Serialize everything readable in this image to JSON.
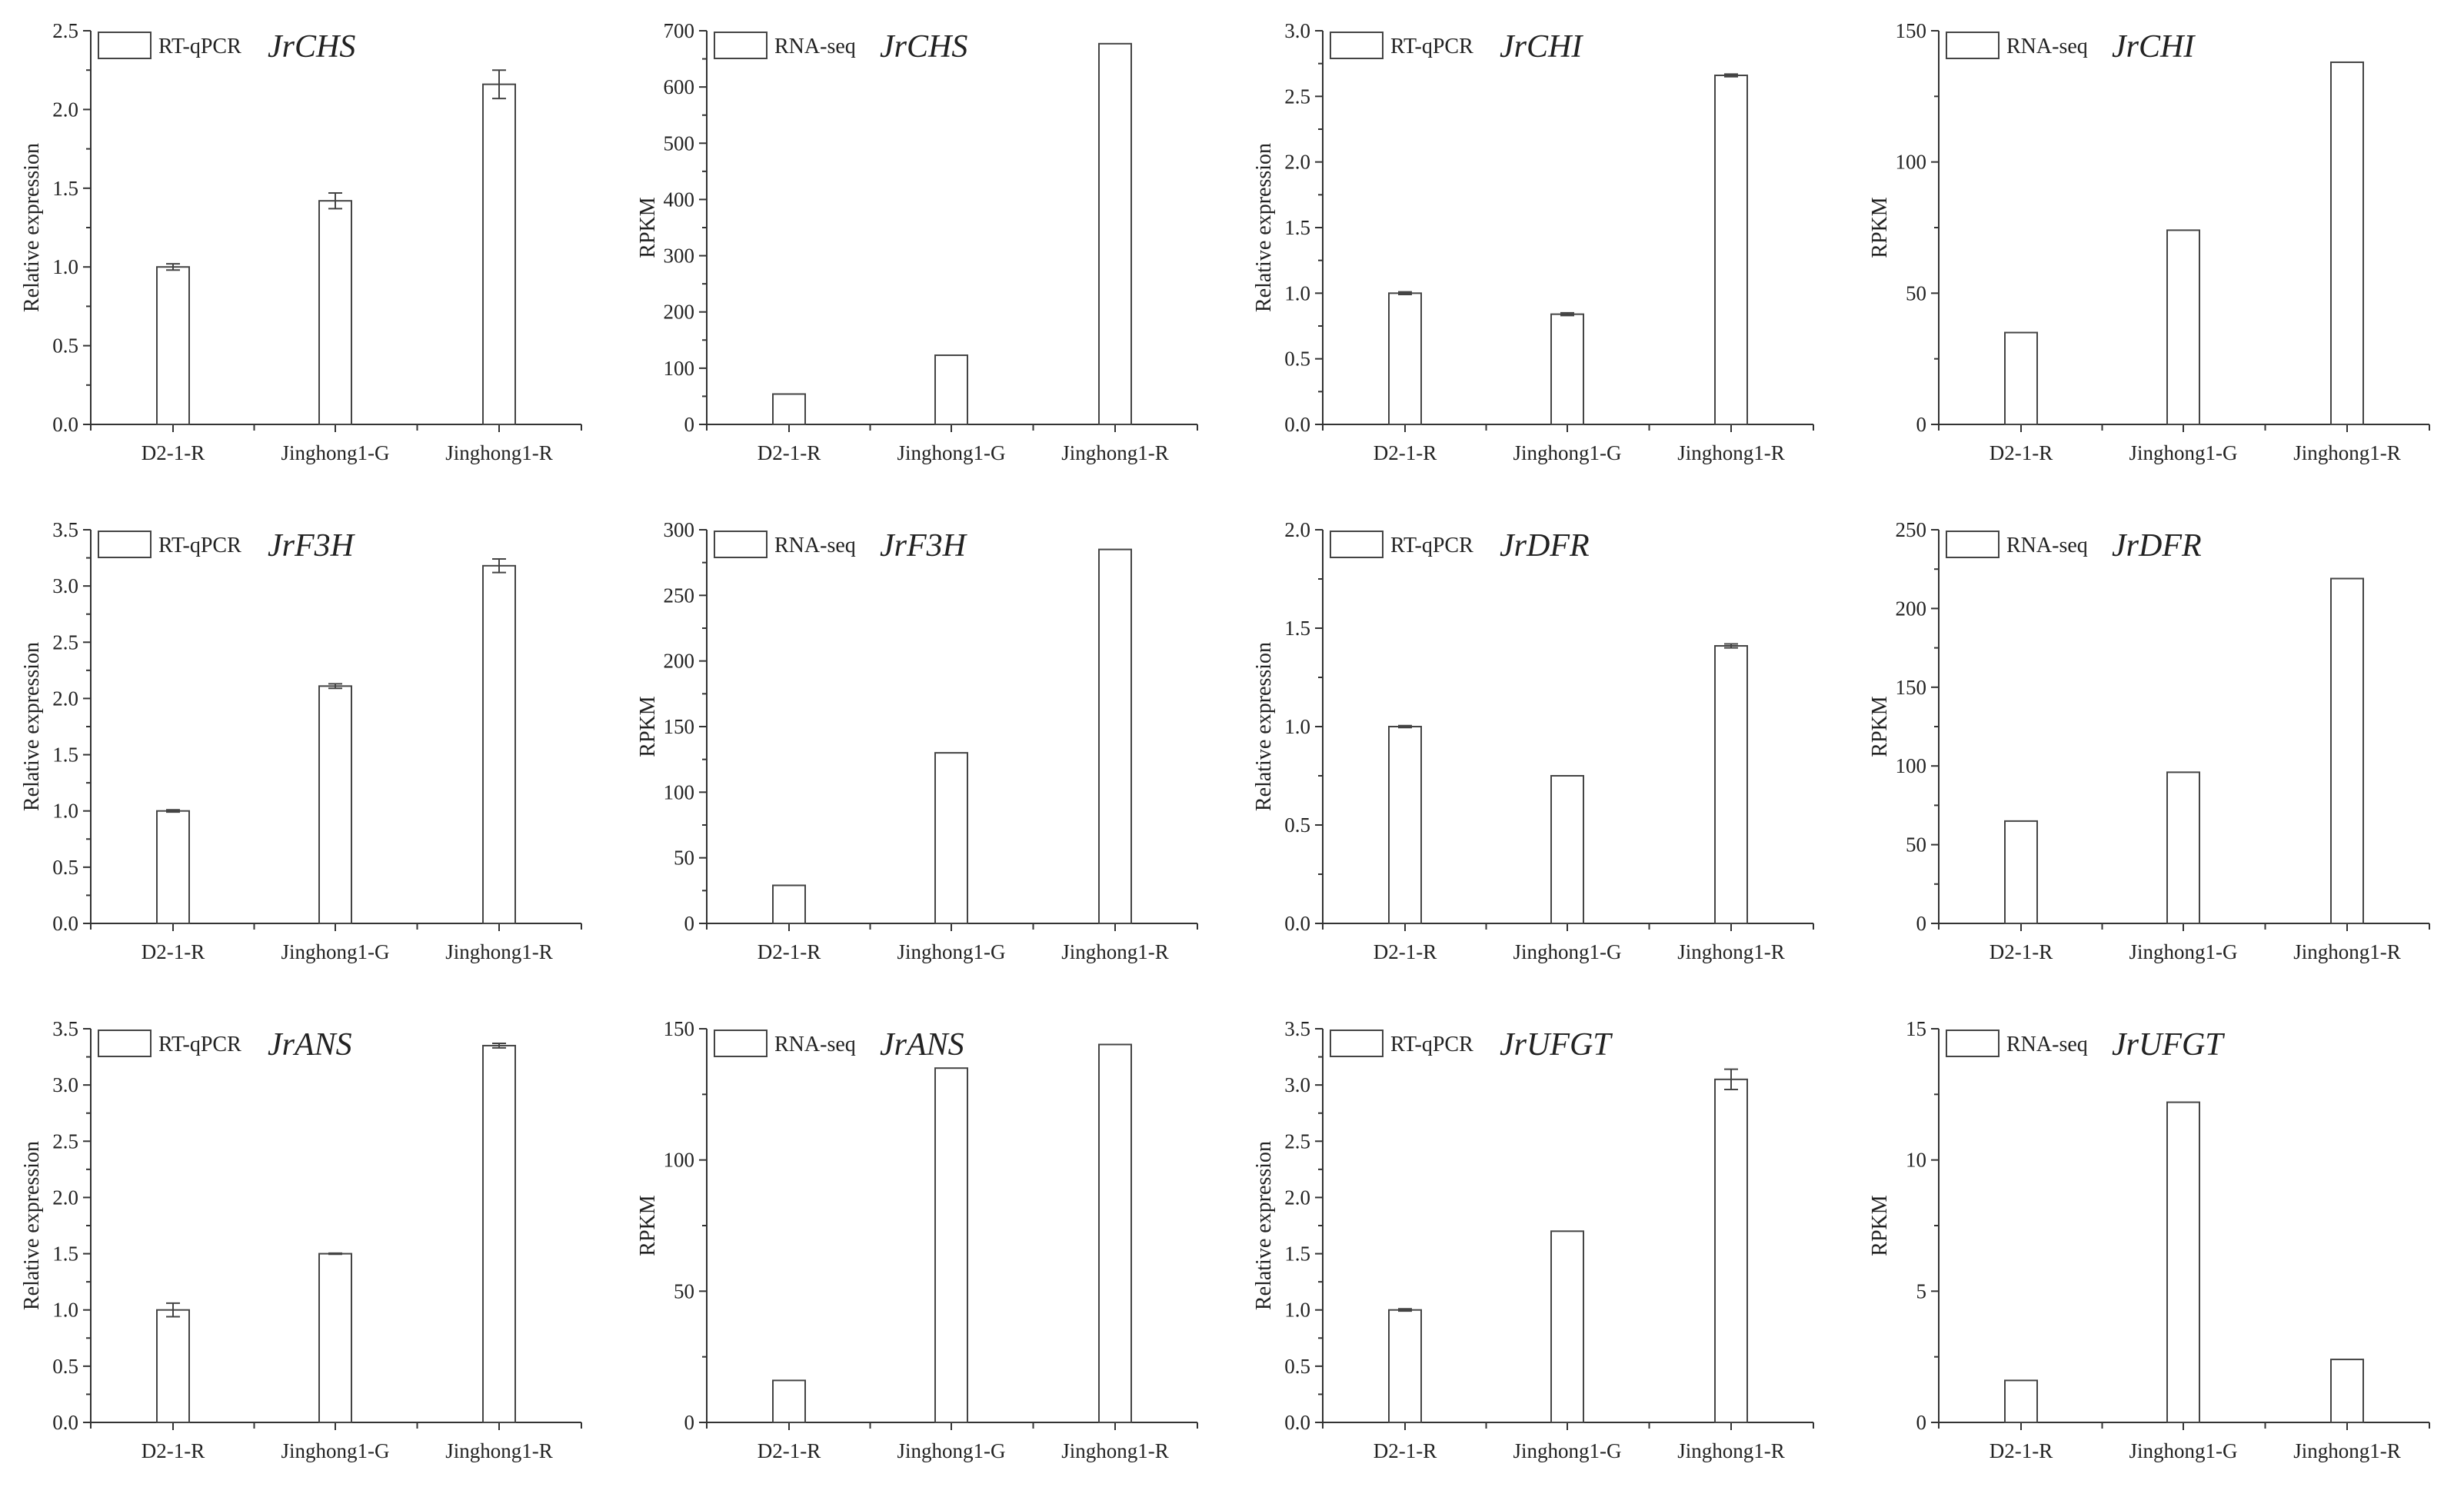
{
  "figure_title": "",
  "chart_data": [
    {
      "type": "bar",
      "panel": "a",
      "method": "RT-qPCR",
      "gene": "JrCHS",
      "title": "RT-qPCR JrCHS",
      "xlabel": "",
      "ylabel": "Relative expression",
      "categories": [
        "D2-1-R",
        "Jinghong1-G",
        "Jinghong1-R"
      ],
      "values": [
        1.0,
        1.42,
        2.16
      ],
      "errors": [
        0.02,
        0.05,
        0.09
      ],
      "ylim": [
        0,
        2.5
      ],
      "yticks": [
        "0.0",
        "0.5",
        "1.0",
        "1.5",
        "2.0",
        "2.5"
      ],
      "legend": "top-left",
      "grid": false
    },
    {
      "type": "bar",
      "panel": "b",
      "method": "RNA-seq",
      "gene": "JrCHS",
      "title": "RNA-seq JrCHS",
      "xlabel": "",
      "ylabel": "RPKM",
      "categories": [
        "D2-1-R",
        "Jinghong1-G",
        "Jinghong1-R"
      ],
      "values": [
        54,
        123,
        677
      ],
      "errors": null,
      "ylim": [
        0,
        700
      ],
      "yticks": [
        "0",
        "100",
        "200",
        "300",
        "400",
        "500",
        "600",
        "700"
      ],
      "legend": "top-left",
      "grid": false
    },
    {
      "type": "bar",
      "panel": "c",
      "method": "RT-qPCR",
      "gene": "JrCHI",
      "title": "RT-qPCR JrCHI",
      "xlabel": "",
      "ylabel": "Relative expression",
      "categories": [
        "D2-1-R",
        "Jinghong1-G",
        "Jinghong1-R"
      ],
      "values": [
        1.0,
        0.84,
        2.66
      ],
      "errors": [
        0.01,
        0.01,
        0.01
      ],
      "ylim": [
        0,
        3.0
      ],
      "yticks": [
        "0.0",
        "0.5",
        "1.0",
        "1.5",
        "2.0",
        "2.5",
        "3.0"
      ],
      "legend": "top-left",
      "grid": false
    },
    {
      "type": "bar",
      "panel": "d",
      "method": "RNA-seq",
      "gene": "JrCHI",
      "title": "RNA-seq JrCHI",
      "xlabel": "",
      "ylabel": "RPKM",
      "categories": [
        "D2-1-R",
        "Jinghong1-G",
        "Jinghong1-R"
      ],
      "values": [
        35,
        74,
        138
      ],
      "errors": null,
      "ylim": [
        0,
        150
      ],
      "yticks": [
        "0",
        "50",
        "100",
        "150"
      ],
      "legend": "top-left",
      "grid": false
    },
    {
      "type": "bar",
      "panel": "e",
      "method": "RT-qPCR",
      "gene": "JrF3H",
      "title": "RT-qPCR JrF3H",
      "xlabel": "",
      "ylabel": "Relative expression",
      "categories": [
        "D2-1-R",
        "Jinghong1-G",
        "Jinghong1-R"
      ],
      "values": [
        1.0,
        2.11,
        3.18
      ],
      "errors": [
        0.01,
        0.02,
        0.06
      ],
      "ylim": [
        0,
        3.5
      ],
      "yticks": [
        "0.0",
        "0.5",
        "1.0",
        "1.5",
        "2.0",
        "2.5",
        "3.0",
        "3.5"
      ],
      "legend": "top-left",
      "grid": false
    },
    {
      "type": "bar",
      "panel": "f",
      "method": "RNA-seq",
      "gene": "JrF3H",
      "title": "RNA-seq JrF3H",
      "xlabel": "",
      "ylabel": "RPKM",
      "categories": [
        "D2-1-R",
        "Jinghong1-G",
        "Jinghong1-R"
      ],
      "values": [
        29,
        130,
        285
      ],
      "errors": null,
      "ylim": [
        0,
        300
      ],
      "yticks": [
        "0",
        "50",
        "100",
        "150",
        "200",
        "250",
        "300"
      ],
      "legend": "top-left",
      "grid": false
    },
    {
      "type": "bar",
      "panel": "g",
      "method": "RT-qPCR",
      "gene": "JrDFR",
      "title": "RT-qPCR JrDFR",
      "xlabel": "",
      "ylabel": "Relative expression",
      "categories": [
        "D2-1-R",
        "Jinghong1-G",
        "Jinghong1-R"
      ],
      "values": [
        1.0,
        0.75,
        1.41
      ],
      "errors": [
        0.005,
        0.0,
        0.01
      ],
      "ylim": [
        0,
        2.0
      ],
      "yticks": [
        "0.0",
        "0.5",
        "1.0",
        "1.5",
        "2.0"
      ],
      "legend": "top-left",
      "grid": false
    },
    {
      "type": "bar",
      "panel": "h",
      "method": "RNA-seq",
      "gene": "JrDFR",
      "title": "RNA-seq JrDFR",
      "xlabel": "",
      "ylabel": "RPKM",
      "categories": [
        "D2-1-R",
        "Jinghong1-G",
        "Jinghong1-R"
      ],
      "values": [
        65,
        96,
        219
      ],
      "errors": null,
      "ylim": [
        0,
        250
      ],
      "yticks": [
        "0",
        "50",
        "100",
        "150",
        "200",
        "250"
      ],
      "legend": "top-left",
      "grid": false
    },
    {
      "type": "bar",
      "panel": "i",
      "method": "RT-qPCR",
      "gene": "JrANS",
      "title": "RT-qPCR JrANS",
      "xlabel": "",
      "ylabel": "Relative expression",
      "categories": [
        "D2-1-R",
        "Jinghong1-G",
        "Jinghong1-R"
      ],
      "values": [
        1.0,
        1.5,
        3.35
      ],
      "errors": [
        0.06,
        0.005,
        0.02
      ],
      "ylim": [
        0,
        3.5
      ],
      "yticks": [
        "0.0",
        "0.5",
        "1.0",
        "1.5",
        "2.0",
        "2.5",
        "3.0",
        "3.5"
      ],
      "legend": "top-left",
      "grid": false
    },
    {
      "type": "bar",
      "panel": "j",
      "method": "RNA-seq",
      "gene": "JrANS",
      "title": "RNA-seq JrANS",
      "xlabel": "",
      "ylabel": "RPKM",
      "categories": [
        "D2-1-R",
        "Jinghong1-G",
        "Jinghong1-R"
      ],
      "values": [
        16,
        135,
        144
      ],
      "errors": null,
      "ylim": [
        0,
        150
      ],
      "yticks": [
        "0",
        "50",
        "100",
        "150"
      ],
      "legend": "top-left",
      "grid": false
    },
    {
      "type": "bar",
      "panel": "k",
      "method": "RT-qPCR",
      "gene": "JrUFGT",
      "title": "RT-qPCR JrUFGT",
      "xlabel": "",
      "ylabel": "Relative expression",
      "categories": [
        "D2-1-R",
        "Jinghong1-G",
        "Jinghong1-R"
      ],
      "values": [
        1.0,
        1.7,
        3.05
      ],
      "errors": [
        0.01,
        0.0,
        0.09
      ],
      "ylim": [
        0,
        3.5
      ],
      "yticks": [
        "0.0",
        "0.5",
        "1.0",
        "1.5",
        "2.0",
        "2.5",
        "3.0",
        "3.5"
      ],
      "legend": "top-left",
      "grid": false
    },
    {
      "type": "bar",
      "panel": "l",
      "method": "RNA-seq",
      "gene": "JrUFGT",
      "title": "RNA-seq JrUFGT",
      "xlabel": "",
      "ylabel": "RPKM",
      "categories": [
        "D2-1-R",
        "Jinghong1-G",
        "Jinghong1-R"
      ],
      "values": [
        1.6,
        12.2,
        2.4
      ],
      "errors": null,
      "ylim": [
        0,
        15
      ],
      "yticks": [
        "0",
        "5",
        "10",
        "15"
      ],
      "legend": "top-left",
      "grid": false
    }
  ]
}
